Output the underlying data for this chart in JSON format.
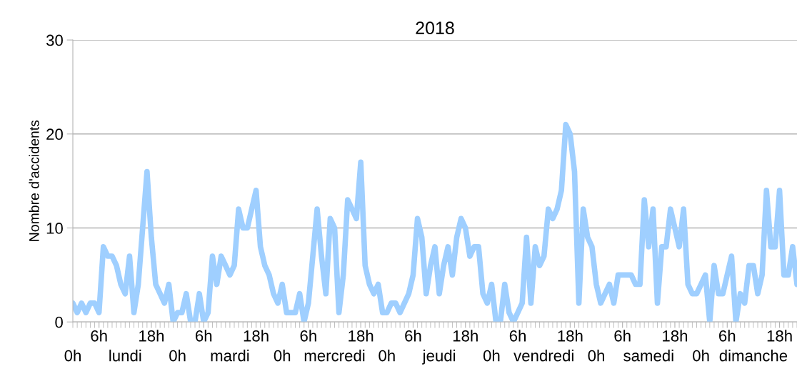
{
  "chart_data": {
    "type": "line",
    "title": "2018",
    "ylabel": "Nombre d'accidents",
    "categories": [
      "0h",
      null,
      null,
      null,
      null,
      null,
      "6h",
      null,
      null,
      null,
      null,
      null,
      "lundi",
      null,
      null,
      null,
      null,
      null,
      "18h",
      null,
      null,
      null,
      null,
      null,
      "0h",
      null,
      null,
      null,
      null,
      null,
      "6h",
      null,
      null,
      null,
      null,
      null,
      "mardi",
      null,
      null,
      null,
      null,
      null,
      "18h",
      null,
      null,
      null,
      null,
      null,
      "0h",
      null,
      null,
      null,
      null,
      null,
      "6h",
      null,
      null,
      null,
      null,
      null,
      "mercredi",
      null,
      null,
      null,
      null,
      null,
      "18h",
      null,
      null,
      null,
      null,
      null,
      "0h",
      null,
      null,
      null,
      null,
      null,
      "6h",
      null,
      null,
      null,
      null,
      null,
      "jeudi",
      null,
      null,
      null,
      null,
      null,
      "18h",
      null,
      null,
      null,
      null,
      null,
      "0h",
      null,
      null,
      null,
      null,
      null,
      "6h",
      null,
      null,
      null,
      null,
      null,
      "vendredi",
      null,
      null,
      null,
      null,
      null,
      "18h",
      null,
      null,
      null,
      null,
      null,
      "0h",
      null,
      null,
      null,
      null,
      null,
      "6h",
      null,
      null,
      null,
      null,
      null,
      "samedi",
      null,
      null,
      null,
      null,
      null,
      "18h",
      null,
      null,
      null,
      null,
      null,
      "0h",
      null,
      null,
      null,
      null,
      null,
      "6h",
      null,
      null,
      null,
      null,
      null,
      "dimanche",
      null,
      null,
      null,
      null,
      null,
      "18h",
      null,
      null,
      null,
      null
    ],
    "series": [
      {
        "color": "#9fcfff",
        "values": [
          2,
          1,
          2,
          1,
          2,
          2,
          1,
          8,
          7,
          7,
          6,
          4,
          3,
          7,
          1,
          4,
          10,
          16,
          9,
          4,
          3,
          2,
          4,
          0,
          1,
          1,
          3,
          0,
          0,
          3,
          0,
          1,
          7,
          4,
          7,
          6,
          5,
          6,
          12,
          10,
          10,
          12,
          14,
          8,
          6,
          5,
          3,
          2,
          4,
          1,
          1,
          1,
          3,
          0,
          2,
          7,
          12,
          7,
          3,
          11,
          10,
          1,
          5,
          13,
          12,
          11,
          17,
          6,
          4,
          3,
          4,
          1,
          1,
          2,
          2,
          1,
          2,
          3,
          5,
          11,
          9,
          3,
          6,
          8,
          3,
          6,
          8,
          5,
          9,
          11,
          10,
          7,
          8,
          8,
          3,
          2,
          4,
          0,
          0,
          4,
          1,
          0,
          1,
          2,
          9,
          2,
          8,
          6,
          7,
          12,
          11,
          12,
          14,
          21,
          20,
          16,
          2,
          12,
          9,
          8,
          4,
          2,
          3,
          4,
          2,
          5,
          5,
          5,
          5,
          4,
          4,
          13,
          8,
          12,
          2,
          8,
          8,
          12,
          10,
          8,
          12,
          4,
          3,
          3,
          4,
          5,
          0,
          6,
          3,
          3,
          5,
          7,
          0,
          3,
          2,
          6,
          6,
          3,
          5,
          14,
          8,
          8,
          14,
          5,
          5,
          8,
          4
        ]
      }
    ],
    "ylim": [
      0,
      30
    ],
    "yticks": [
      0,
      10,
      20,
      30
    ],
    "grid": "y",
    "legend": false,
    "marker": "none",
    "line_style": "solid"
  }
}
